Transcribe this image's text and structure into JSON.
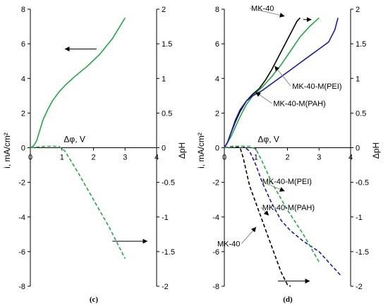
{
  "colors": {
    "green": "#22aa44",
    "black": "#000000",
    "blue": "#1a1ab0",
    "gray": "#8c8c8c"
  },
  "chart_data": [
    {
      "type": "line",
      "panel_label": "(c)",
      "xlabel": "Δφ, V",
      "ylabel_left": "i, mA/cm²",
      "ylabel_right": "ΔpH",
      "xlim": [
        0,
        4
      ],
      "ylim_left": [
        -8,
        8
      ],
      "ylim_right": [
        -2,
        2
      ],
      "xticks": [
        "0",
        "1",
        "2",
        "3",
        "4"
      ],
      "yticks_left": [
        "8",
        "6",
        "4",
        "2",
        "0",
        "-2",
        "-4",
        "-6",
        "-8"
      ],
      "yticks_right": [
        "2",
        "1.5",
        "1",
        "0.5",
        "0",
        "-0.5",
        "-1",
        "-1.5",
        "-2"
      ],
      "series": [
        {
          "axis": "left",
          "color": "green",
          "dash": false,
          "x": [
            0,
            0.1,
            0.2,
            0.3,
            0.4,
            0.55,
            0.7,
            0.9,
            1.1,
            1.4,
            1.8,
            2.2,
            2.6,
            3.0
          ],
          "y": [
            0,
            0.1,
            0.4,
            1.0,
            1.6,
            2.2,
            2.7,
            3.2,
            3.6,
            4.1,
            4.7,
            5.4,
            6.3,
            7.5
          ]
        },
        {
          "axis": "right",
          "color": "green",
          "dash": true,
          "x": [
            0,
            0.5,
            0.9,
            1.1,
            1.5,
            2.0,
            2.5,
            3.0
          ],
          "y": [
            0,
            0.02,
            0.02,
            -0.05,
            -0.35,
            -0.75,
            -1.15,
            -1.6
          ]
        }
      ],
      "arrows": [
        {
          "from": [
            2.1,
            5.7
          ],
          "to": [
            1.1,
            5.7
          ]
        },
        {
          "from": [
            2.6,
            -5.4
          ],
          "to": [
            3.7,
            -5.4
          ]
        }
      ]
    },
    {
      "type": "line",
      "panel_label": "(d)",
      "xlabel": "Δφ, V",
      "ylabel_left": "i, mA/cm²",
      "ylabel_right": "ΔpH",
      "xlim": [
        0,
        4
      ],
      "ylim_left": [
        -8,
        8
      ],
      "ylim_right": [
        -2,
        2
      ],
      "xticks": [
        "0",
        "1",
        "2",
        "3",
        "4"
      ],
      "yticks_left": [
        "8",
        "6",
        "4",
        "2",
        "0",
        "-2",
        "-4",
        "-6",
        "-8"
      ],
      "yticks_right": [
        "2",
        "1.5",
        "1",
        "0.5",
        "0",
        "-0.5",
        "-1",
        "-1.5",
        "-2"
      ],
      "series": [
        {
          "name": "MK-40",
          "axis": "left",
          "color": "black",
          "dash": false,
          "x": [
            0,
            0.1,
            0.2,
            0.35,
            0.5,
            0.7,
            0.9,
            1.1,
            1.3,
            1.5,
            1.7,
            1.9,
            2.1,
            2.3,
            2.4
          ],
          "y": [
            0,
            0.3,
            0.8,
            1.5,
            2.1,
            2.7,
            3.1,
            3.4,
            3.9,
            4.5,
            5.2,
            5.9,
            6.6,
            7.3,
            7.5
          ]
        },
        {
          "name": "MK-40-M(PEI)",
          "axis": "left",
          "color": "green",
          "dash": false,
          "x": [
            0,
            0.2,
            0.35,
            0.5,
            0.7,
            0.9,
            1.2,
            1.5,
            1.8,
            2.1,
            2.4,
            2.7,
            3.0
          ],
          "y": [
            0,
            0.6,
            1.2,
            1.8,
            2.5,
            3.0,
            3.5,
            4.1,
            4.8,
            5.6,
            6.4,
            7.0,
            7.5
          ]
        },
        {
          "name": "MK-40-M(PAH)",
          "axis": "left",
          "color": "blue",
          "dash": false,
          "x": [
            0,
            0.1,
            0.2,
            0.35,
            0.5,
            0.7,
            0.9,
            1.2,
            1.5,
            1.8,
            2.1,
            2.4,
            2.7,
            3.0,
            3.3,
            3.5,
            3.6
          ],
          "y": [
            0,
            0.3,
            0.8,
            1.6,
            2.2,
            2.7,
            3.0,
            3.3,
            3.7,
            4.1,
            4.5,
            4.9,
            5.3,
            5.7,
            6.1,
            6.8,
            7.5
          ]
        },
        {
          "name": "MK-40",
          "axis": "right",
          "color": "black",
          "dash": true,
          "x": [
            0,
            0.3,
            0.5,
            0.6,
            0.7,
            0.8,
            1.0,
            1.2,
            1.4,
            1.6,
            1.8,
            2.0,
            2.1
          ],
          "y": [
            0,
            0.02,
            0.0,
            -0.15,
            -0.35,
            -0.55,
            -0.8,
            -1.05,
            -1.3,
            -1.55,
            -1.8,
            -1.98,
            -2.0
          ]
        },
        {
          "name": "MK-40-M(PAH)",
          "axis": "right",
          "color": "blue",
          "dash": true,
          "x": [
            0,
            0.3,
            0.6,
            0.8,
            1.0,
            1.2,
            1.5,
            1.8,
            2.1,
            2.5,
            3.0,
            3.4,
            3.7
          ],
          "y": [
            0,
            0.02,
            0.02,
            -0.05,
            -0.25,
            -0.5,
            -0.8,
            -1.05,
            -1.2,
            -1.35,
            -1.5,
            -1.7,
            -1.85
          ]
        },
        {
          "name": "MK-40-M(PEI)",
          "axis": "right",
          "color": "green",
          "dash": true,
          "x": [
            0,
            0.4,
            0.8,
            1.0,
            1.2,
            1.5,
            2.0,
            2.5,
            3.0
          ],
          "y": [
            0,
            0.02,
            0.02,
            -0.02,
            -0.2,
            -0.5,
            -0.9,
            -1.25,
            -1.65
          ]
        }
      ],
      "annotations": [
        {
          "text": "MK-40",
          "text_at": [
            0.85,
            7.9
          ],
          "arrow_to": [
            1.9,
            7.6
          ],
          "anchor": "start"
        },
        {
          "text": "MK-40-M(PEI)",
          "text_at": [
            2.15,
            3.4
          ],
          "arrow_to": [
            1.6,
            4.7
          ],
          "anchor": "start"
        },
        {
          "text": "MK-40-M(PAH)",
          "text_at": [
            1.55,
            2.4
          ],
          "arrow_to": [
            1.0,
            3.2
          ],
          "anchor": "start"
        },
        {
          "text": "MK-40-M(PEI)",
          "text_at": [
            1.2,
            -2.1
          ],
          "arrow_to": [
            1.9,
            -2.5
          ],
          "anchor": "start"
        },
        {
          "text": "MK-40-M(PAH)",
          "text_at": [
            1.2,
            -3.6
          ],
          "arrow_to": [
            1.4,
            -3.9
          ],
          "anchor": "start"
        },
        {
          "text": "MK-40",
          "text_at": [
            0.5,
            -5.7
          ],
          "arrow_to": [
            1.0,
            -4.6
          ],
          "anchor": "end"
        }
      ],
      "arrows": [
        {
          "from": [
            2.5,
            7.4
          ],
          "to": [
            2.75,
            7.4
          ]
        },
        {
          "from": [
            1.7,
            -7.7
          ],
          "to": [
            2.7,
            -7.7
          ]
        }
      ]
    }
  ]
}
